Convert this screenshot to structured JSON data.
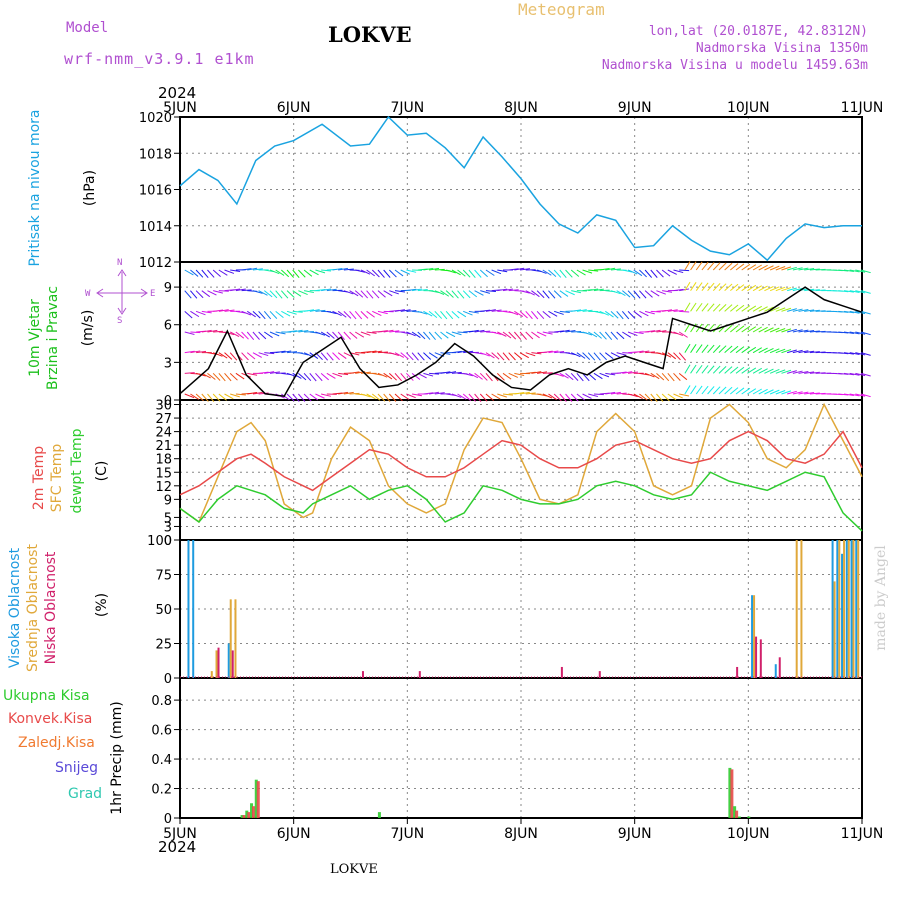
{
  "header": {
    "model_label": "Model",
    "model_name": "wrf-nmm_v3.9.1 e1km",
    "station": "LOKVE",
    "title": "Meteogram",
    "lonlat": "lon,lat (20.0187E, 42.8312N)",
    "elevation": "Nadmorska Visina 1350m",
    "model_elevation": "Nadmorska Visina u modelu 1459.63m"
  },
  "x_axis": {
    "year": "2024",
    "ticks": [
      "5JUN",
      "6JUN",
      "7JUN",
      "8JUN",
      "9JUN",
      "10JUN",
      "11JUN"
    ]
  },
  "footer": {
    "station": "LOKVE"
  },
  "watermark": "made by Angel",
  "colors": {
    "pressure": "#1aa3e0",
    "temp2m": "#e84a4a",
    "sfc": "#e0a83a",
    "dewpt": "#2fcc2f",
    "high_cloud": "#1e9be0",
    "mid_cloud": "#e0a83a",
    "low_cloud": "#d0206a",
    "total_precip": "#2fcc2f",
    "conv_precip": "#e84a4a",
    "frozen": "#f07a30",
    "snow": "#5a4ad8",
    "graupel": "#2fc8b0"
  },
  "panels": {
    "pressure": {
      "label": "Pritisak na nivou mora",
      "unit": "(hPa)"
    },
    "wind": {
      "label1": "10m Vjetar",
      "label2": "Brzina i Pravac",
      "unit": "(m/s)",
      "compass_n": "N",
      "compass_s": "S",
      "compass_w": "W",
      "compass_e": "E"
    },
    "temp": {
      "label1": "2m Temp",
      "label2": "SFC Temp",
      "label3": "dewpt Temp",
      "unit": "(C)"
    },
    "cloud": {
      "label1": "Visoka Oblacnost",
      "label2": "Srednja Oblacnost",
      "label3": "Niska Oblacnost",
      "unit": "(%)"
    },
    "precip": {
      "label1": "Ukupna Kisa",
      "label2": "Konvek.Kisa",
      "label3": "Zaledj.Kisa",
      "label4": "Snijeg",
      "label5": "Grad",
      "unit": "1hr Precip (mm)"
    }
  },
  "chart_data": [
    {
      "type": "line",
      "name": "pressure",
      "x": [
        0,
        4,
        8,
        12,
        16,
        20,
        24,
        30,
        36,
        40,
        44,
        48,
        52,
        56,
        60,
        64,
        68,
        72,
        76,
        80,
        84,
        88,
        92,
        96,
        100,
        104,
        108,
        112,
        116,
        120,
        124,
        128,
        132,
        136,
        140,
        144
      ],
      "series": [
        {
          "name": "Pritisak",
          "values": [
            1016.2,
            1017.1,
            1016.5,
            1015.2,
            1017.6,
            1018.4,
            1018.7,
            1019.6,
            1018.4,
            1018.5,
            1020.0,
            1019.0,
            1019.1,
            1018.3,
            1017.2,
            1018.9,
            1017.8,
            1016.6,
            1015.2,
            1014.1,
            1013.6,
            1014.6,
            1014.3,
            1012.8,
            1012.9,
            1014.0,
            1013.2,
            1012.6,
            1012.4,
            1013.0,
            1012.1,
            1013.3,
            1014.1,
            1013.9,
            1014.0,
            1014.0
          ]
        }
      ],
      "ylim": [
        1012,
        1020
      ],
      "yticks": [
        1012,
        1014,
        1016,
        1018,
        1020
      ]
    },
    {
      "type": "line",
      "name": "wind",
      "x": [
        0,
        6,
        10,
        14,
        18,
        22,
        26,
        30,
        34,
        38,
        42,
        46,
        50,
        54,
        58,
        62,
        66,
        70,
        74,
        78,
        82,
        86,
        90,
        94,
        98,
        102,
        104,
        108,
        112,
        116,
        120,
        124,
        128,
        132,
        136,
        140,
        144
      ],
      "series": [
        {
          "name": "Brzina",
          "values": [
            0.5,
            2.5,
            5.5,
            2.0,
            0.5,
            0.3,
            3.0,
            4.0,
            5.0,
            2.5,
            1.0,
            1.2,
            2.0,
            3.0,
            4.5,
            3.5,
            2.0,
            1.0,
            0.8,
            2.0,
            2.5,
            2.0,
            3.0,
            3.5,
            3.0,
            2.5,
            6.5,
            6.0,
            5.5,
            6.0,
            6.5,
            7.0,
            8.0,
            9.0,
            8.0,
            7.5,
            7.0
          ]
        }
      ],
      "ylim": [
        0,
        11
      ],
      "yticks": [
        0,
        3,
        6,
        9
      ]
    },
    {
      "type": "line",
      "name": "temperature",
      "x": [
        0,
        4,
        8,
        12,
        15,
        18,
        22,
        26,
        28,
        32,
        36,
        40,
        44,
        48,
        52,
        56,
        60,
        64,
        68,
        72,
        76,
        80,
        84,
        88,
        92,
        96,
        100,
        104,
        108,
        112,
        116,
        120,
        124,
        128,
        132,
        136,
        140,
        144
      ],
      "series": [
        {
          "name": "2m Temp",
          "values": [
            10,
            12,
            15,
            18,
            19,
            17,
            14,
            12,
            11,
            14,
            17,
            20,
            19,
            16,
            14,
            14,
            16,
            19,
            22,
            21,
            18,
            16,
            16,
            18,
            21,
            22,
            20,
            18,
            17,
            18,
            22,
            24,
            22,
            18,
            17,
            19,
            24,
            16
          ]
        },
        {
          "name": "SFC Temp",
          "values": [
            7,
            4,
            14,
            24,
            26,
            22,
            8,
            5,
            6,
            18,
            25,
            22,
            12,
            8,
            6,
            8,
            20,
            27,
            26,
            18,
            9,
            8,
            10,
            24,
            28,
            24,
            12,
            10,
            12,
            27,
            30,
            26,
            18,
            16,
            20,
            30,
            22,
            14
          ]
        },
        {
          "name": "dewpt Temp",
          "values": [
            7,
            4,
            9,
            12,
            11,
            10,
            7,
            6,
            8,
            10,
            12,
            9,
            11,
            12,
            9,
            4,
            6,
            12,
            11,
            9,
            8,
            8,
            9,
            12,
            13,
            12,
            10,
            9,
            10,
            15,
            13,
            12,
            11,
            13,
            15,
            14,
            6,
            2
          ]
        }
      ],
      "ylim": [
        0,
        31
      ],
      "yticks": [
        0,
        3,
        5,
        9,
        12,
        15,
        18,
        21,
        24,
        27,
        30
      ]
    },
    {
      "type": "bar",
      "name": "cloud",
      "x": [
        2,
        3,
        6.5,
        7.5,
        10.5,
        11.5,
        38,
        50,
        80,
        88,
        117,
        121,
        122,
        126,
        130,
        131,
        138,
        139,
        140,
        141,
        142,
        143
      ],
      "series": [
        {
          "name": "Visoka",
          "values": [
            100,
            100,
            0,
            0,
            25,
            0,
            0,
            0,
            0,
            0,
            0,
            60,
            0,
            10,
            0,
            0,
            100,
            100,
            90,
            100,
            100,
            100
          ]
        },
        {
          "name": "Srednja",
          "values": [
            0,
            0,
            5,
            20,
            57,
            57,
            0,
            0,
            0,
            0,
            0,
            60,
            0,
            0,
            100,
            100,
            70,
            100,
            100,
            100,
            100,
            100
          ]
        },
        {
          "name": "Niska",
          "values": [
            0,
            0,
            0,
            22,
            20,
            0,
            5,
            5,
            8,
            5,
            8,
            30,
            28,
            15,
            0,
            0,
            0,
            0,
            0,
            0,
            0,
            0
          ]
        }
      ],
      "ylim": [
        0,
        100
      ],
      "yticks": [
        0,
        25,
        50,
        75,
        100
      ]
    },
    {
      "type": "bar",
      "name": "precipitation",
      "x": [
        13,
        14,
        15,
        16,
        42,
        116,
        117,
        118,
        120
      ],
      "series": [
        {
          "name": "Ukupna Kisa",
          "values": [
            0.02,
            0.05,
            0.1,
            0.26,
            0.04,
            0.34,
            0.08,
            0.01,
            0.01
          ]
        },
        {
          "name": "Konvek.Kisa",
          "values": [
            0.02,
            0.04,
            0.08,
            0.25,
            0.0,
            0.33,
            0.05,
            0.0,
            0.0
          ]
        }
      ],
      "ylim": [
        0,
        0.95
      ],
      "yticks": [
        0,
        0.2,
        0.4,
        0.6,
        0.8
      ]
    }
  ]
}
